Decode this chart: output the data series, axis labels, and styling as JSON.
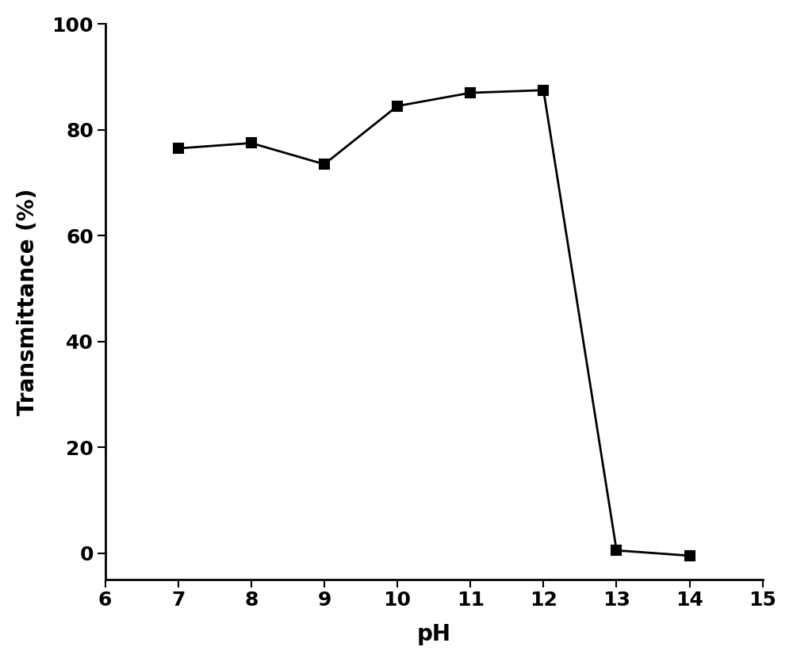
{
  "x": [
    7,
    8,
    9,
    10,
    11,
    12,
    13,
    14
  ],
  "y": [
    76.5,
    77.5,
    73.5,
    84.5,
    87.0,
    87.5,
    0.5,
    -0.5
  ],
  "xlabel": "pH",
  "ylabel": "Transmittance (%)",
  "xlim": [
    6,
    15
  ],
  "ylim": [
    -5,
    100
  ],
  "xticks": [
    6,
    7,
    8,
    9,
    10,
    11,
    12,
    13,
    14,
    15
  ],
  "yticks": [
    0,
    20,
    40,
    60,
    80,
    100
  ],
  "line_color": "#000000",
  "marker": "s",
  "marker_size": 8,
  "marker_color": "#000000",
  "linewidth": 2.0,
  "axis_label_fontsize": 20,
  "tick_fontsize": 18,
  "background_color": "#ffffff",
  "figure_width": 10.0,
  "figure_height": 8.35
}
